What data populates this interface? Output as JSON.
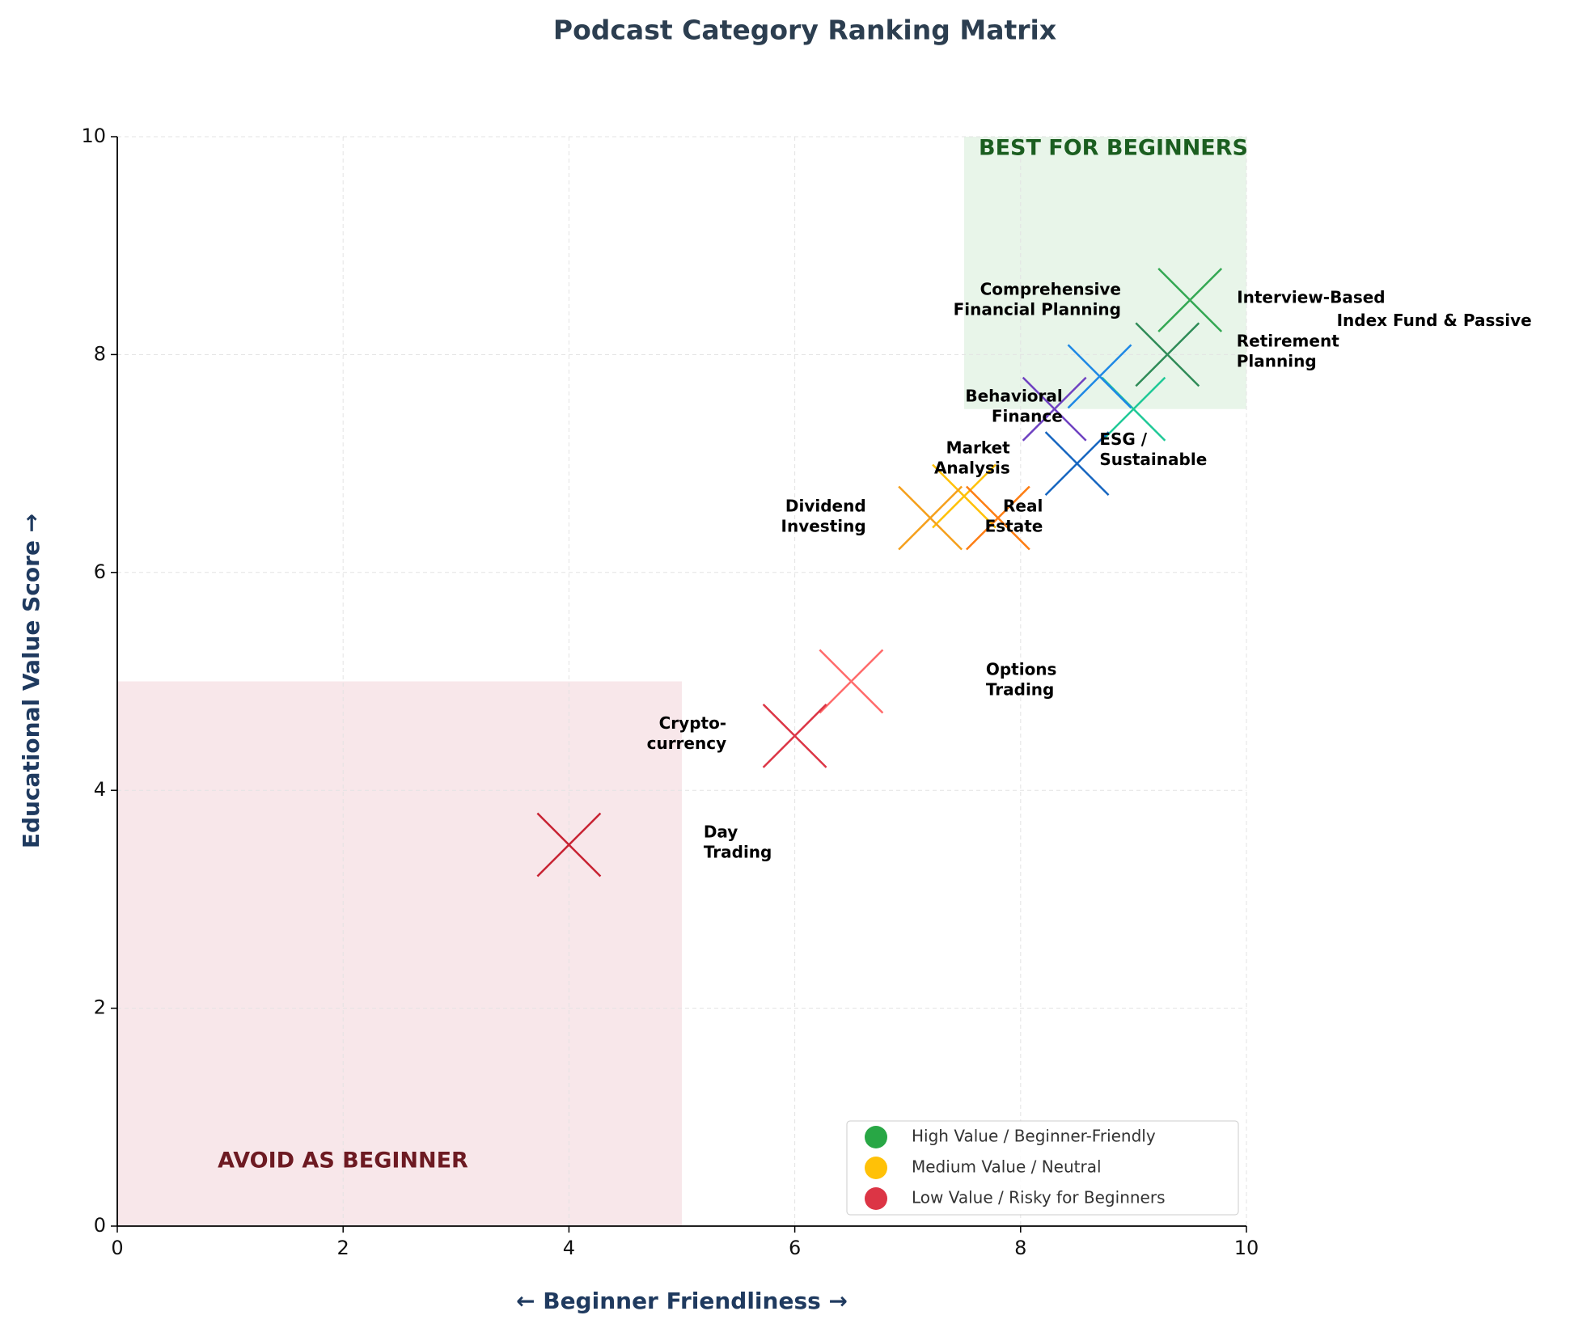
{
  "chart_data": {
    "type": "scatter",
    "title": "Podcast Category Ranking Matrix",
    "x_label": "← Beginner Friendliness →",
    "y_label": "Educational Value Score →",
    "xlim": [
      0,
      10
    ],
    "ylim": [
      0,
      10
    ],
    "xticks": [
      0,
      2,
      4,
      6,
      8,
      10
    ],
    "yticks": [
      0,
      2,
      4,
      6,
      8,
      10
    ],
    "grid": true,
    "regions": [
      {
        "label": "BEST FOR BEGINNERS",
        "x": [
          7.5,
          10
        ],
        "y": [
          7.5,
          10
        ],
        "color": "#e8f5e9",
        "text_color": "#1b5e20"
      },
      {
        "label": "AVOID AS BEGINNER",
        "x": [
          0,
          5
        ],
        "y": [
          0,
          5
        ],
        "color": "#f8e7ea",
        "text_color": "#6d1a22"
      }
    ],
    "points": [
      {
        "label": [
          "Interview-Based"
        ],
        "x": 9.5,
        "y": 8.5,
        "color": "#34a853"
      },
      {
        "label": [
          "Index Fund & Passive"
        ],
        "x": 9.3,
        "y": 8.0,
        "color": "#2e8b57"
      },
      {
        "label": [
          "Retirement",
          "Planning"
        ],
        "x": 9.0,
        "y": 7.5,
        "color": "#20c997"
      },
      {
        "label": [
          "Comprehensive",
          "Financial Planning"
        ],
        "x": 8.7,
        "y": 7.8,
        "color": "#1e88e5"
      },
      {
        "label": [
          "Behavioral",
          "Finance"
        ],
        "x": 8.3,
        "y": 7.5,
        "color": "#6f42c1"
      },
      {
        "label": [
          "ESG /",
          "Sustainable"
        ],
        "x": 8.5,
        "y": 7.0,
        "color": "#1565c0"
      },
      {
        "label": [
          "Market",
          "Analysis"
        ],
        "x": 7.5,
        "y": 6.7,
        "color": "#ffc107"
      },
      {
        "label": [
          "Dividend",
          "Investing"
        ],
        "x": 7.2,
        "y": 6.5,
        "color": "#f5a01c"
      },
      {
        "label": [
          "Real",
          "Estate"
        ],
        "x": 7.8,
        "y": 6.5,
        "color": "#fd7e14"
      },
      {
        "label": [
          "Options",
          "Trading"
        ],
        "x": 6.5,
        "y": 5.0,
        "color": "#ff6b6b"
      },
      {
        "label": [
          "Crypto-",
          "currency"
        ],
        "x": 6.0,
        "y": 4.5,
        "color": "#dc3545"
      },
      {
        "label": [
          "Day",
          "Trading"
        ],
        "x": 4.0,
        "y": 3.5,
        "color": "#c82333"
      }
    ],
    "legend": [
      {
        "name": "High Value / Beginner-Friendly",
        "color": "#28a745"
      },
      {
        "name": "Medium Value / Neutral",
        "color": "#ffc107"
      },
      {
        "name": "Low Value / Risky for Beginners",
        "color": "#dc3545"
      }
    ],
    "legend_position": "lower right"
  }
}
